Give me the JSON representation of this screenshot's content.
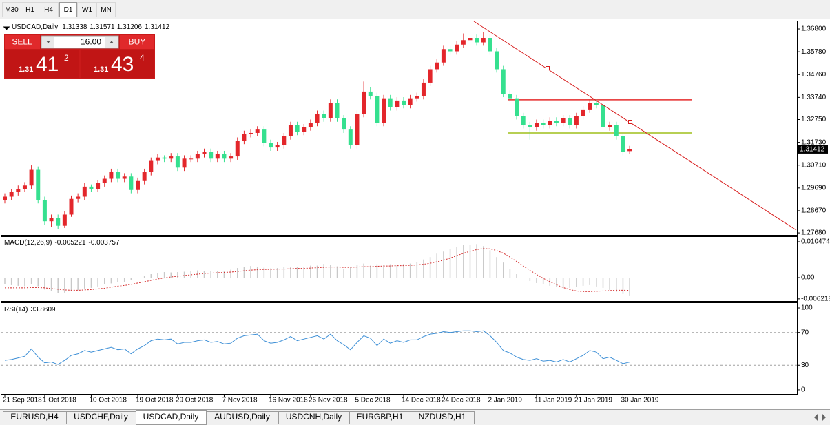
{
  "toolbar": {
    "timeframes": [
      "M30",
      "H1",
      "H4",
      "D1",
      "W1",
      "MN"
    ],
    "active": "D1"
  },
  "trade_panel": {
    "sell": "SELL",
    "buy": "BUY",
    "volume": "16.00",
    "bid": {
      "big": "1.31",
      "pips": "41",
      "point": "2"
    },
    "ask": {
      "big": "1.31",
      "pips": "43",
      "point": "4"
    }
  },
  "chart_data": [
    {
      "type": "candlestick",
      "title": "USDCAD,Daily",
      "up_color": "#e3262b",
      "down_color": "#35e08f",
      "categories": [
        "21 Sep 2018",
        null,
        null,
        null,
        null,
        null,
        "1 Oct 2018",
        null,
        null,
        null,
        null,
        null,
        null,
        "10 Oct 2018",
        null,
        null,
        null,
        null,
        null,
        null,
        "19 Oct 2018",
        null,
        null,
        null,
        null,
        null,
        "29 Oct 2018",
        null,
        null,
        null,
        null,
        null,
        null,
        "7 Nov 2018",
        null,
        null,
        null,
        null,
        null,
        null,
        "16 Nov 2018",
        null,
        null,
        null,
        null,
        null,
        "26 Nov 2018",
        null,
        null,
        null,
        null,
        null,
        null,
        "5 Dec 2018",
        null,
        null,
        null,
        null,
        null,
        null,
        "14 Dec 2018",
        null,
        null,
        null,
        null,
        null,
        "24 Dec 2018",
        null,
        null,
        null,
        null,
        null,
        null,
        "2 Jan 2019",
        null,
        null,
        null,
        null,
        null,
        null,
        "11 Jan 2019",
        null,
        null,
        null,
        null,
        null,
        "21 Jan 2019",
        null,
        null,
        null,
        null,
        null,
        null,
        "30 Jan 2019",
        null
      ],
      "candles": [
        [
          1.2915,
          1.2945,
          1.29,
          1.293
        ],
        [
          1.293,
          1.2965,
          1.2915,
          1.295
        ],
        [
          1.295,
          1.298,
          1.2935,
          1.2965
        ],
        [
          1.2965,
          1.2995,
          1.295,
          1.298
        ],
        [
          1.298,
          1.307,
          1.2965,
          1.305
        ],
        [
          1.305,
          1.3065,
          1.29,
          1.2915
        ],
        [
          1.2915,
          1.293,
          1.2805,
          1.282
        ],
        [
          1.282,
          1.285,
          1.2795,
          1.2835
        ],
        [
          1.2835,
          1.285,
          1.2785,
          1.28
        ],
        [
          1.28,
          1.2865,
          1.279,
          1.285
        ],
        [
          1.285,
          1.2935,
          1.284,
          1.292
        ],
        [
          1.292,
          1.2945,
          1.2905,
          1.293
        ],
        [
          1.293,
          1.299,
          1.2915,
          1.2975
        ],
        [
          1.2975,
          1.2985,
          1.295,
          1.2965
        ],
        [
          1.2965,
          1.3005,
          1.295,
          1.299
        ],
        [
          1.299,
          1.3025,
          1.2975,
          1.301
        ],
        [
          1.301,
          1.3055,
          1.2995,
          1.304
        ],
        [
          1.304,
          1.3055,
          1.2995,
          1.301
        ],
        [
          1.301,
          1.3035,
          1.2995,
          1.302
        ],
        [
          1.302,
          1.3035,
          1.2945,
          1.296
        ],
        [
          1.296,
          1.3015,
          1.2945,
          1.3
        ],
        [
          1.3,
          1.3055,
          1.2985,
          1.304
        ],
        [
          1.304,
          1.3105,
          1.3025,
          1.309
        ],
        [
          1.309,
          1.312,
          1.3075,
          1.3105
        ],
        [
          1.3105,
          1.3115,
          1.3085,
          1.31
        ],
        [
          1.31,
          1.3125,
          1.3085,
          1.311
        ],
        [
          1.311,
          1.3125,
          1.3045,
          1.306
        ],
        [
          1.306,
          1.3115,
          1.3045,
          1.31
        ],
        [
          1.31,
          1.3115,
          1.3085,
          1.31
        ],
        [
          1.31,
          1.3135,
          1.3085,
          1.312
        ],
        [
          1.312,
          1.3145,
          1.3105,
          1.313
        ],
        [
          1.313,
          1.3145,
          1.3085,
          1.31
        ],
        [
          1.31,
          1.3135,
          1.3085,
          1.312
        ],
        [
          1.312,
          1.3135,
          1.3085,
          1.31
        ],
        [
          1.31,
          1.3125,
          1.3085,
          1.311
        ],
        [
          1.311,
          1.3195,
          1.3095,
          1.318
        ],
        [
          1.318,
          1.3225,
          1.3165,
          1.321
        ],
        [
          1.321,
          1.323,
          1.3195,
          1.3215
        ],
        [
          1.3215,
          1.3245,
          1.32,
          1.323
        ],
        [
          1.323,
          1.3245,
          1.3155,
          1.317
        ],
        [
          1.317,
          1.3185,
          1.3135,
          1.315
        ],
        [
          1.315,
          1.3175,
          1.3135,
          1.316
        ],
        [
          1.316,
          1.3215,
          1.3145,
          1.32
        ],
        [
          1.32,
          1.3265,
          1.3185,
          1.325
        ],
        [
          1.325,
          1.3265,
          1.3205,
          1.322
        ],
        [
          1.322,
          1.3255,
          1.3205,
          1.324
        ],
        [
          1.324,
          1.3275,
          1.3225,
          1.326
        ],
        [
          1.326,
          1.3315,
          1.3245,
          1.33
        ],
        [
          1.33,
          1.3315,
          1.3265,
          1.328
        ],
        [
          1.328,
          1.3365,
          1.3265,
          1.335
        ],
        [
          1.335,
          1.3365,
          1.3265,
          1.328
        ],
        [
          1.328,
          1.3295,
          1.3215,
          1.323
        ],
        [
          1.323,
          1.3245,
          1.3145,
          1.316
        ],
        [
          1.316,
          1.3315,
          1.3145,
          1.33
        ],
        [
          1.33,
          1.3445,
          1.3285,
          1.34
        ],
        [
          1.34,
          1.342,
          1.3365,
          1.338
        ],
        [
          1.338,
          1.3395,
          1.3245,
          1.326
        ],
        [
          1.326,
          1.3385,
          1.3245,
          1.337
        ],
        [
          1.337,
          1.3385,
          1.3315,
          1.333
        ],
        [
          1.333,
          1.3375,
          1.3315,
          1.336
        ],
        [
          1.336,
          1.3375,
          1.3325,
          1.334
        ],
        [
          1.334,
          1.3385,
          1.3325,
          1.337
        ],
        [
          1.337,
          1.3395,
          1.3355,
          1.338
        ],
        [
          1.338,
          1.3455,
          1.3365,
          1.344
        ],
        [
          1.344,
          1.3515,
          1.3425,
          1.35
        ],
        [
          1.35,
          1.3545,
          1.3485,
          1.353
        ],
        [
          1.353,
          1.3605,
          1.3515,
          1.359
        ],
        [
          1.359,
          1.3605,
          1.3565,
          1.358
        ],
        [
          1.358,
          1.3625,
          1.3565,
          1.361
        ],
        [
          1.361,
          1.366,
          1.3595,
          1.363
        ],
        [
          1.363,
          1.366,
          1.3615,
          1.364
        ],
        [
          1.364,
          1.3655,
          1.3605,
          1.362
        ],
        [
          1.362,
          1.3665,
          1.3605,
          1.364
        ],
        [
          1.364,
          1.3655,
          1.3565,
          1.358
        ],
        [
          1.358,
          1.3595,
          1.3485,
          1.35
        ],
        [
          1.35,
          1.3515,
          1.3375,
          1.339
        ],
        [
          1.339,
          1.3405,
          1.3355,
          1.337
        ],
        [
          1.337,
          1.3385,
          1.3275,
          1.329
        ],
        [
          1.329,
          1.3305,
          1.3235,
          1.325
        ],
        [
          1.325,
          1.3265,
          1.3185,
          1.324
        ],
        [
          1.324,
          1.3275,
          1.3225,
          1.326
        ],
        [
          1.326,
          1.3275,
          1.3235,
          1.325
        ],
        [
          1.325,
          1.3285,
          1.3235,
          1.327
        ],
        [
          1.327,
          1.3285,
          1.3245,
          1.326
        ],
        [
          1.326,
          1.3295,
          1.3245,
          1.328
        ],
        [
          1.328,
          1.3295,
          1.3235,
          1.325
        ],
        [
          1.325,
          1.3305,
          1.3235,
          1.329
        ],
        [
          1.329,
          1.3335,
          1.3275,
          1.332
        ],
        [
          1.332,
          1.3365,
          1.3305,
          1.335
        ],
        [
          1.335,
          1.3365,
          1.3325,
          1.334
        ],
        [
          1.334,
          1.3355,
          1.3225,
          1.324
        ],
        [
          1.324,
          1.3265,
          1.3225,
          1.325
        ],
        [
          1.325,
          1.3265,
          1.3185,
          1.32
        ],
        [
          1.32,
          1.3215,
          1.3115,
          1.313
        ],
        [
          1.31338,
          1.31571,
          1.31206,
          1.31412
        ]
      ],
      "ylim": [
        1.2759,
        1.3714
      ],
      "yticks": [
        {
          "value": 1.368,
          "label": "1.36800"
        },
        {
          "value": 1.3578,
          "label": "1.35780"
        },
        {
          "value": 1.3476,
          "label": "1.34760"
        },
        {
          "value": 1.3374,
          "label": "1.33740"
        },
        {
          "value": 1.3275,
          "label": "1.32750"
        },
        {
          "value": 1.3173,
          "label": "1.31730"
        },
        {
          "value": 1.3071,
          "label": "1.30710"
        },
        {
          "value": 1.2969,
          "label": "1.29690"
        },
        {
          "value": 1.2867,
          "label": "1.28670"
        },
        {
          "value": 1.2768,
          "label": "1.27680"
        }
      ],
      "hlines": [
        {
          "value": 1.3363,
          "color": "#e52b2b"
        },
        {
          "value": 1.3215,
          "color": "#9fbf1a"
        }
      ]
    },
    {
      "type": "macd",
      "title": "MACD(12,26,9)",
      "ylim": [
        -0.00685,
        0.01188
      ],
      "yticks": [
        0.010474,
        {
          "value": 0,
          "label": "0.00"
        },
        -0.006218
      ],
      "series": [
        {
          "color": "#c8c8c8",
          "values": [
            -0.002,
            -0.0022,
            -0.0024,
            -0.0025,
            -0.002,
            -0.0025,
            -0.0035,
            -0.004,
            -0.0045,
            -0.0044,
            -0.004,
            -0.0037,
            -0.0032,
            -0.003,
            -0.0026,
            -0.002,
            -0.0017,
            -0.0013,
            -0.0012,
            -0.0008,
            -0.0002,
            0.0005,
            0.001,
            0.0013,
            0.0016,
            0.0015,
            0.0016,
            0.0017,
            0.0019,
            0.0021,
            0.002,
            0.002,
            0.0019,
            0.0018,
            0.0023,
            0.0028,
            0.0031,
            0.0034,
            0.0032,
            0.0029,
            0.0027,
            0.0028,
            0.0031,
            0.0031,
            0.0031,
            0.0032,
            0.0035,
            0.0035,
            0.004,
            0.0038,
            0.0033,
            0.0026,
            0.003,
            0.0038,
            0.0041,
            0.0035,
            0.0039,
            0.0038,
            0.0039,
            0.0038,
            0.004,
            0.0041,
            0.0046,
            0.0053,
            0.006,
            0.007,
            0.0076,
            0.0083,
            0.009,
            0.0095,
            0.0096,
            0.0098,
            0.0092,
            0.008,
            0.006,
            0.0044,
            0.0026,
            0.001,
            -0.0002,
            -0.001,
            -0.0016,
            -0.002,
            -0.0024,
            -0.0026,
            -0.003,
            -0.003,
            -0.0028,
            -0.0024,
            -0.0022,
            -0.0026,
            -0.003,
            -0.0036,
            -0.0042,
            -0.0048,
            -0.005221
          ]
        },
        {
          "color": "#d42a2a",
          "values": [
            -0.003,
            -0.003,
            -0.003,
            -0.003,
            -0.0029,
            -0.0029,
            -0.003,
            -0.0032,
            -0.0034,
            -0.0036,
            -0.0037,
            -0.0037,
            -0.0036,
            -0.0035,
            -0.0033,
            -0.0031,
            -0.0028,
            -0.0025,
            -0.0023,
            -0.002,
            -0.0016,
            -0.0012,
            -0.0008,
            -0.0004,
            -0.0001,
            0.0002,
            0.0004,
            0.0006,
            0.0008,
            0.001,
            0.0012,
            0.0013,
            0.0014,
            0.0015,
            0.0016,
            0.0018,
            0.002,
            0.0022,
            0.0023,
            0.0024,
            0.0024,
            0.0025,
            0.0025,
            0.0026,
            0.0027,
            0.0027,
            0.0028,
            0.0029,
            0.003,
            0.0031,
            0.0031,
            0.003,
            0.003,
            0.0031,
            0.0032,
            0.0032,
            0.0033,
            0.0034,
            0.0034,
            0.0035,
            0.0035,
            0.0036,
            0.0037,
            0.0039,
            0.0042,
            0.0046,
            0.0051,
            0.0057,
            0.0064,
            0.0071,
            0.0077,
            0.0082,
            0.0085,
            0.0084,
            0.0079,
            0.0071,
            0.006,
            0.0047,
            0.0034,
            0.0021,
            0.0009,
            -0.0002,
            -0.0012,
            -0.0021,
            -0.0029,
            -0.0035,
            -0.0039,
            -0.0041,
            -0.0041,
            -0.004,
            -0.0039,
            -0.0038,
            -0.0037,
            -0.0037,
            -0.003757
          ]
        }
      ]
    },
    {
      "type": "line",
      "title": "RSI(14)",
      "ylim": [
        -5.1,
        105.9
      ],
      "yticks": [
        100,
        70,
        30,
        0
      ],
      "levels": [
        70,
        30
      ],
      "series": [
        {
          "color": "#3d8fd6",
          "values": [
            36,
            37,
            39,
            41,
            50,
            40,
            33,
            34,
            31,
            36,
            42,
            44,
            48,
            46,
            48,
            50,
            52,
            49,
            50,
            44,
            50,
            54,
            60,
            62,
            61,
            62,
            56,
            58,
            58,
            60,
            61,
            58,
            59,
            56,
            57,
            63,
            66,
            67,
            68,
            60,
            57,
            58,
            61,
            65,
            60,
            62,
            64,
            66,
            62,
            68,
            60,
            55,
            49,
            58,
            66,
            63,
            54,
            62,
            57,
            60,
            58,
            61,
            61,
            65,
            68,
            69,
            71,
            70,
            71,
            72,
            72,
            71,
            72,
            66,
            58,
            48,
            45,
            40,
            37,
            36,
            38,
            35,
            36,
            34,
            37,
            34,
            38,
            42,
            48,
            46,
            38,
            40,
            36,
            32,
            33.8609
          ]
        }
      ]
    }
  ],
  "tabs": {
    "items": [
      "EURUSD,H4",
      "USDCHF,Daily",
      "USDCAD,Daily",
      "AUDUSD,Daily",
      "USDCNH,Daily",
      "EURGBP,H1",
      "NZDUSD,H1"
    ],
    "active": "USDCAD,Daily"
  }
}
